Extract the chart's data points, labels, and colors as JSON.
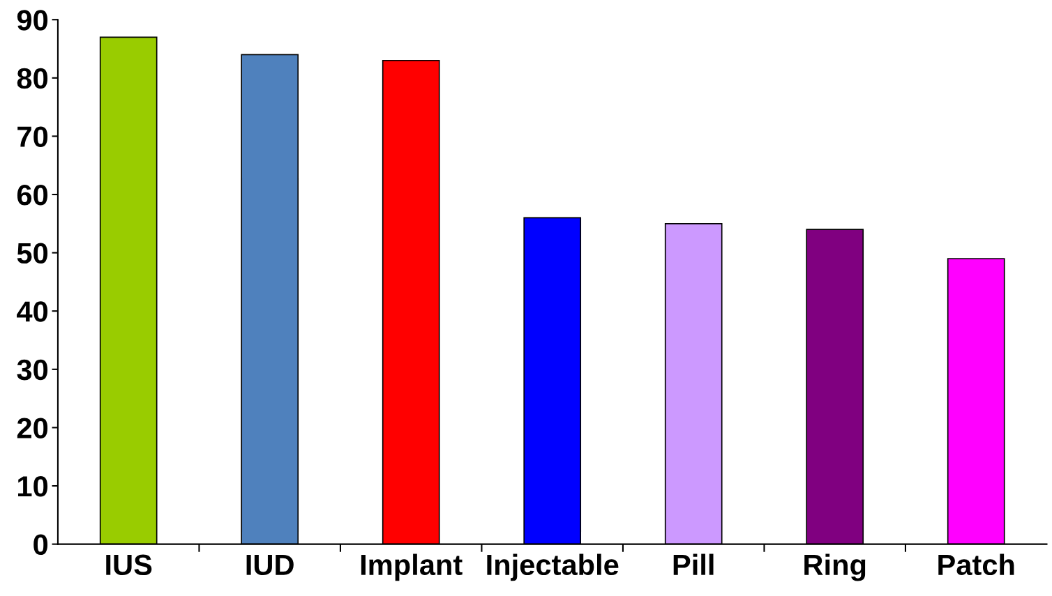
{
  "chart_data": {
    "type": "bar",
    "categories": [
      "IUS",
      "IUD",
      "Implant",
      "Injectable",
      "Pill",
      "Ring",
      "Patch"
    ],
    "values": [
      87,
      84,
      83,
      56,
      55,
      54,
      49
    ],
    "colors": [
      "#99cc00",
      "#4f81bd",
      "#ff0000",
      "#0000ff",
      "#cc99ff",
      "#800080",
      "#ff00ff"
    ],
    "ylim": [
      0,
      90
    ],
    "yticks": [
      0,
      10,
      20,
      30,
      40,
      50,
      60,
      70,
      80,
      90
    ],
    "grid": false,
    "legend": false
  }
}
